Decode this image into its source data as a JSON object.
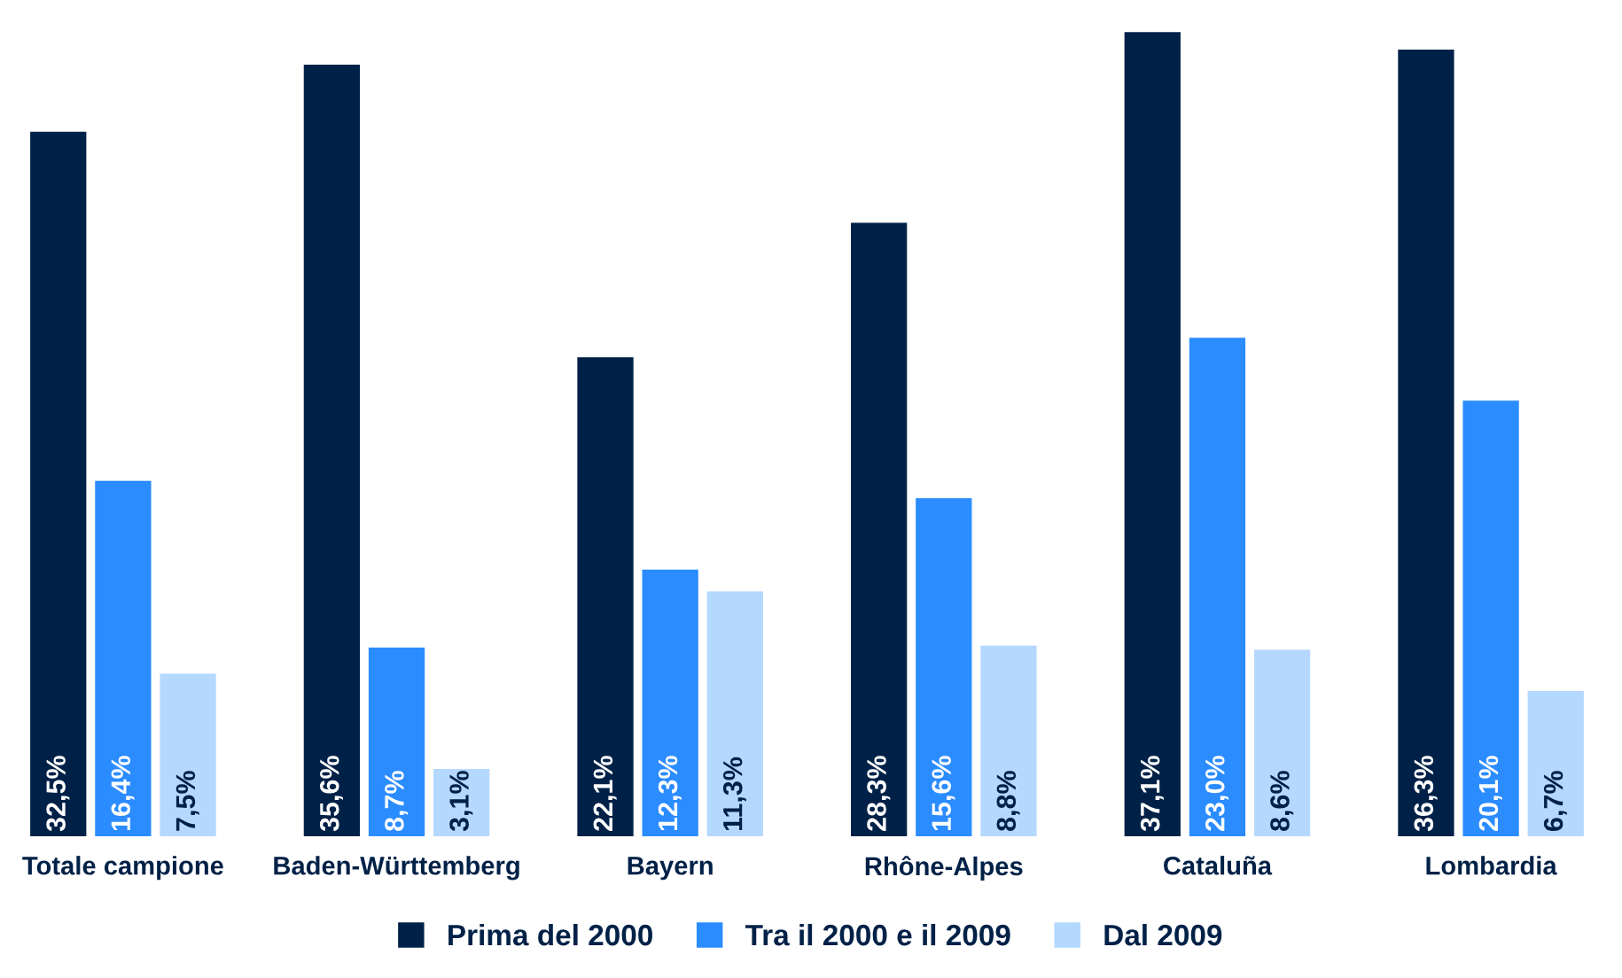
{
  "chart_data": {
    "type": "bar",
    "categories": [
      "Totale campione",
      "Baden-Württemberg",
      "Bayern",
      "Rhône-Alpes",
      "Cataluña",
      "Lombardia"
    ],
    "series": [
      {
        "name": "Prima del 2000",
        "color": "#002147",
        "values": [
          32.5,
          35.6,
          22.1,
          28.3,
          37.1,
          36.3
        ],
        "value_labels": [
          "32,5%",
          "35,6%",
          "22,1%",
          "28,3%",
          "37,1%",
          "36,3%"
        ]
      },
      {
        "name": "Tra il 2000 e il 2009",
        "color": "#2b8cff",
        "values": [
          16.4,
          8.7,
          12.3,
          15.6,
          23.0,
          20.1
        ],
        "value_labels": [
          "16,4%",
          "8,7%",
          "12,3%",
          "15,6%",
          "23,0%",
          "20,1%"
        ]
      },
      {
        "name": "Dal 2009",
        "color": "#b5d8ff",
        "values": [
          7.5,
          3.1,
          11.3,
          8.8,
          8.6,
          6.7
        ],
        "value_labels": [
          "7,5%",
          "3,1%",
          "11,3%",
          "8,8%",
          "8,6%",
          "6,7%"
        ]
      }
    ],
    "tick_labels": "x",
    "legend": "bottom",
    "grid": false
  }
}
